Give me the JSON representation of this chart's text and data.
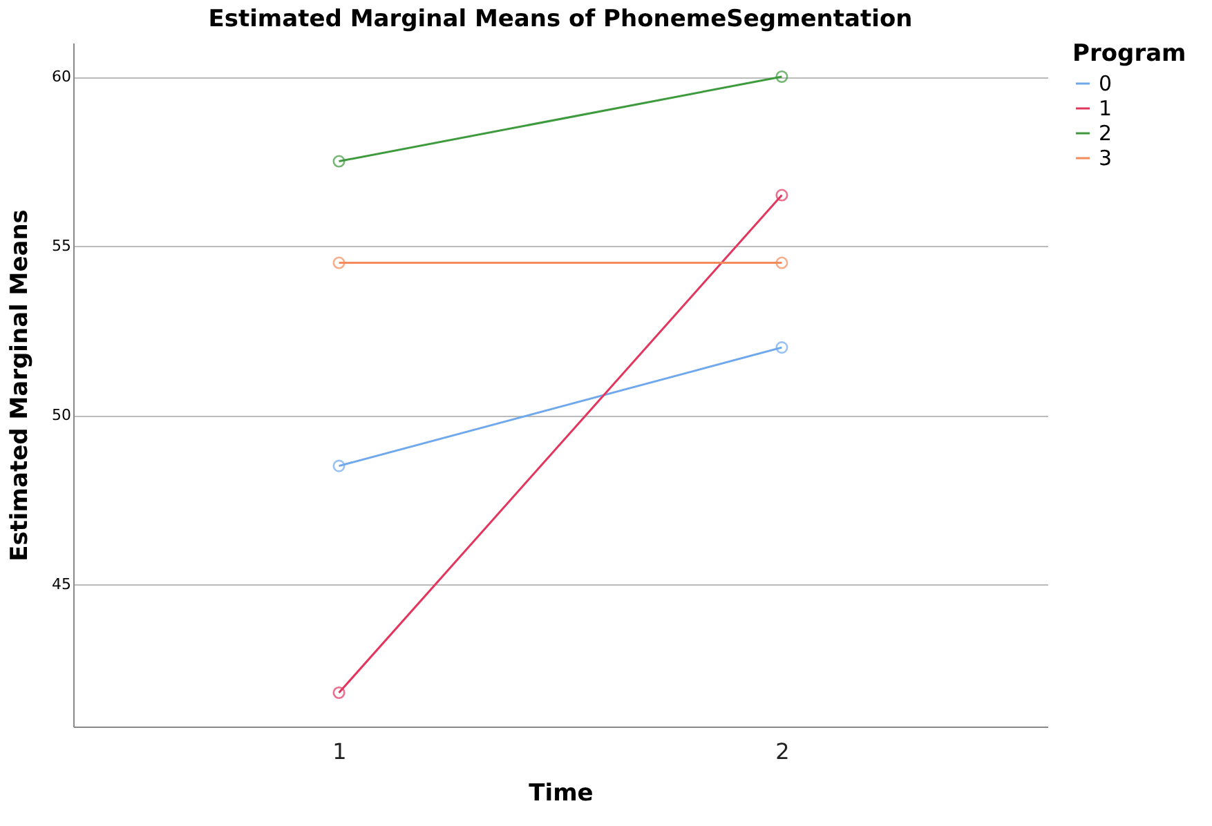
{
  "chart_data": {
    "type": "line",
    "title": "Estimated Marginal Means of PhonemeSegmentation",
    "xlabel": "Time",
    "ylabel": "Estimated Marginal Means",
    "legend_title": "Program",
    "categories": [
      "1",
      "2"
    ],
    "series": [
      {
        "name": "0",
        "color": "#6fa8ec",
        "values": [
          48.5,
          52.0
        ]
      },
      {
        "name": "1",
        "color": "#e2365f",
        "values": [
          41.8,
          56.5
        ]
      },
      {
        "name": "2",
        "color": "#3d9a3d",
        "values": [
          57.5,
          60.0
        ]
      },
      {
        "name": "3",
        "color": "#f58a5a",
        "values": [
          54.5,
          54.5
        ]
      }
    ],
    "ylim": [
      40.8,
      61
    ],
    "yticks": [
      45,
      50,
      55,
      60
    ],
    "grid": "y",
    "legend": "top right",
    "marker": "circle",
    "line_style": "solid"
  }
}
